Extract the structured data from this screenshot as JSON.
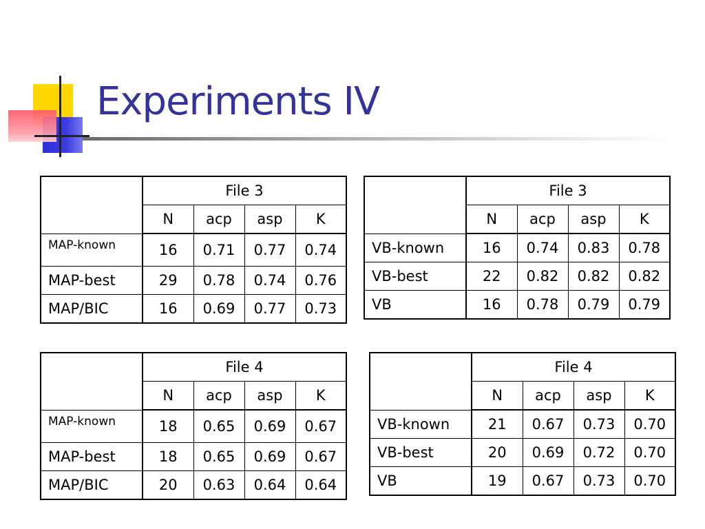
{
  "slide": {
    "title": "Experiments IV"
  },
  "tables": [
    {
      "file": "File 3",
      "columns": [
        "N",
        "acp",
        "asp",
        "K"
      ],
      "rows": [
        {
          "label": "MAP-known",
          "values": [
            "16",
            "0.71",
            "0.77",
            "0.74"
          ]
        },
        {
          "label": "MAP-best",
          "values": [
            "29",
            "0.78",
            "0.74",
            "0.76"
          ]
        },
        {
          "label": "MAP/BIC",
          "values": [
            "16",
            "0.69",
            "0.77",
            "0.73"
          ]
        }
      ]
    },
    {
      "file": "File 3",
      "columns": [
        "N",
        "acp",
        "asp",
        "K"
      ],
      "rows": [
        {
          "label": "VB-known",
          "values": [
            "16",
            "0.74",
            "0.83",
            "0.78"
          ]
        },
        {
          "label": "VB-best",
          "values": [
            "22",
            "0.82",
            "0.82",
            "0.82"
          ]
        },
        {
          "label": "VB",
          "values": [
            "16",
            "0.78",
            "0.79",
            "0.79"
          ]
        }
      ]
    },
    {
      "file": "File 4",
      "columns": [
        "N",
        "acp",
        "asp",
        "K"
      ],
      "rows": [
        {
          "label": "MAP-known",
          "values": [
            "18",
            "0.65",
            "0.69",
            "0.67"
          ]
        },
        {
          "label": "MAP-best",
          "values": [
            "18",
            "0.65",
            "0.69",
            "0.67"
          ]
        },
        {
          "label": "MAP/BIC",
          "values": [
            "20",
            "0.63",
            "0.64",
            "0.64"
          ]
        }
      ]
    },
    {
      "file": "File 4",
      "columns": [
        "N",
        "acp",
        "asp",
        "K"
      ],
      "rows": [
        {
          "label": "VB-known",
          "values": [
            "21",
            "0.67",
            "0.73",
            "0.70"
          ]
        },
        {
          "label": "VB-best",
          "values": [
            "20",
            "0.69",
            "0.72",
            "0.70"
          ]
        },
        {
          "label": "VB",
          "values": [
            "19",
            "0.67",
            "0.73",
            "0.70"
          ]
        }
      ]
    }
  ],
  "colors": {
    "title": "#33339a",
    "logo_yellow": "#ffd700",
    "logo_blue": "#2f2fd8",
    "logo_red": "#ff5a6a"
  }
}
